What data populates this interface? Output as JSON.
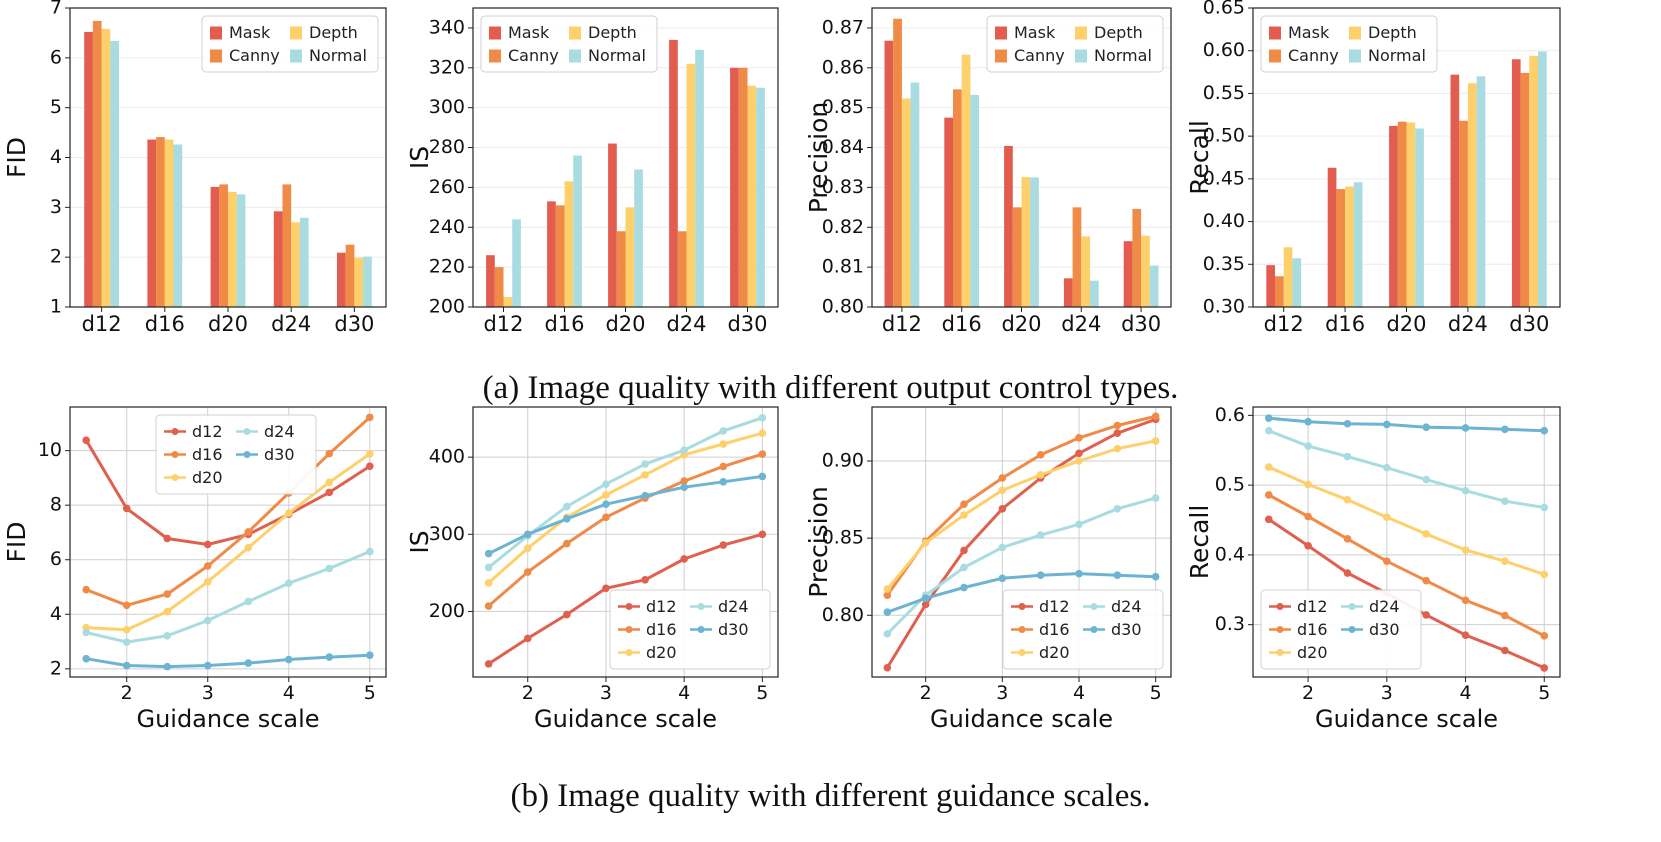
{
  "captions": {
    "a": "(a) Image quality with different output control types.",
    "b": "(b) Image quality with different guidance scales."
  },
  "chart_data": [
    {
      "type": "bar",
      "panel": "a",
      "ylabel": "FID",
      "xlabel": "",
      "categories": [
        "d12",
        "d16",
        "d20",
        "d24",
        "d30"
      ],
      "ylim": [
        1,
        7
      ],
      "yticks": [
        1,
        2,
        3,
        4,
        5,
        6,
        7
      ],
      "legend_position": "top-right",
      "legend_columns": 2,
      "series": [
        {
          "name": "Mask",
          "color": "#e35d4f",
          "values": [
            6.52,
            4.36,
            3.41,
            2.92,
            2.09
          ]
        },
        {
          "name": "Canny",
          "color": "#ef8a47",
          "values": [
            6.74,
            4.41,
            3.46,
            3.46,
            2.25
          ]
        },
        {
          "name": "Depth",
          "color": "#fdd06b",
          "values": [
            6.58,
            4.36,
            3.31,
            2.7,
            1.99
          ]
        },
        {
          "name": "Normal",
          "color": "#a8dce0",
          "values": [
            6.34,
            4.26,
            3.26,
            2.79,
            2.01
          ]
        }
      ]
    },
    {
      "type": "bar",
      "panel": "a",
      "ylabel": "IS",
      "xlabel": "",
      "categories": [
        "d12",
        "d16",
        "d20",
        "d24",
        "d30"
      ],
      "ylim": [
        200,
        350
      ],
      "yticks": [
        200,
        220,
        240,
        260,
        280,
        300,
        320,
        340
      ],
      "legend_position": "top-left",
      "legend_columns": 2,
      "series": [
        {
          "name": "Mask",
          "color": "#e35d4f",
          "values": [
            226,
            253,
            282,
            334,
            320
          ]
        },
        {
          "name": "Canny",
          "color": "#ef8a47",
          "values": [
            220,
            251,
            238,
            238,
            320
          ]
        },
        {
          "name": "Depth",
          "color": "#fdd06b",
          "values": [
            205,
            263,
            250,
            322,
            311
          ]
        },
        {
          "name": "Normal",
          "color": "#a8dce0",
          "values": [
            244,
            276,
            269,
            329,
            310
          ]
        }
      ]
    },
    {
      "type": "bar",
      "panel": "a",
      "ylabel": "Precision",
      "xlabel": "",
      "categories": [
        "d12",
        "d16",
        "d20",
        "d24",
        "d30"
      ],
      "ylim": [
        0.8,
        0.875
      ],
      "yticks": [
        0.8,
        0.81,
        0.82,
        0.83,
        0.84,
        0.85,
        0.86,
        0.87
      ],
      "tick_decimals": 2,
      "legend_position": "top-right",
      "legend_columns": 2,
      "series": [
        {
          "name": "Mask",
          "color": "#e35d4f",
          "values": [
            0.8668,
            0.8475,
            0.8404,
            0.8072,
            0.8165
          ]
        },
        {
          "name": "Canny",
          "color": "#ef8a47",
          "values": [
            0.8723,
            0.8546,
            0.825,
            0.825,
            0.8246
          ]
        },
        {
          "name": "Depth",
          "color": "#fdd06b",
          "values": [
            0.8523,
            0.8633,
            0.8326,
            0.8177,
            0.8179
          ]
        },
        {
          "name": "Normal",
          "color": "#a8dce0",
          "values": [
            0.8563,
            0.8532,
            0.8325,
            0.8066,
            0.8104
          ]
        }
      ]
    },
    {
      "type": "bar",
      "panel": "a",
      "ylabel": "Recall",
      "xlabel": "",
      "categories": [
        "d12",
        "d16",
        "d20",
        "d24",
        "d30"
      ],
      "ylim": [
        0.3,
        0.65
      ],
      "yticks": [
        0.3,
        0.35,
        0.4,
        0.45,
        0.5,
        0.55,
        0.6,
        0.65
      ],
      "tick_decimals": 2,
      "legend_position": "top-left",
      "legend_columns": 2,
      "series": [
        {
          "name": "Mask",
          "color": "#e35d4f",
          "values": [
            0.349,
            0.463,
            0.512,
            0.572,
            0.59
          ]
        },
        {
          "name": "Canny",
          "color": "#ef8a47",
          "values": [
            0.336,
            0.438,
            0.517,
            0.518,
            0.574
          ]
        },
        {
          "name": "Depth",
          "color": "#fdd06b",
          "values": [
            0.37,
            0.441,
            0.516,
            0.562,
            0.594
          ]
        },
        {
          "name": "Normal",
          "color": "#a8dce0",
          "values": [
            0.357,
            0.446,
            0.509,
            0.57,
            0.599
          ]
        }
      ]
    },
    {
      "type": "line",
      "panel": "b",
      "ylabel": "FID",
      "xlabel": "Guidance scale",
      "x": [
        1.5,
        2,
        2.5,
        3,
        3.5,
        4,
        4.5,
        5
      ],
      "xlim": [
        1.3,
        5.2
      ],
      "xticks": [
        2,
        3,
        4,
        5
      ],
      "ylim": [
        1.7,
        11.6
      ],
      "yticks": [
        2,
        4,
        6,
        8,
        10
      ],
      "grid": true,
      "legend_position": "top-center",
      "legend_columns": 2,
      "series": [
        {
          "name": "d12",
          "color": "#e0604f",
          "values": [
            10.38,
            7.88,
            6.78,
            6.56,
            6.93,
            7.67,
            8.47,
            9.43
          ]
        },
        {
          "name": "d16",
          "color": "#ef8a47",
          "values": [
            4.9,
            4.33,
            4.74,
            5.77,
            7.02,
            8.45,
            9.89,
            11.22
          ]
        },
        {
          "name": "d20",
          "color": "#fdd06b",
          "values": [
            3.51,
            3.43,
            4.1,
            5.19,
            6.44,
            7.71,
            8.84,
            9.88
          ]
        },
        {
          "name": "d24",
          "color": "#a8dce0",
          "values": [
            3.33,
            2.98,
            3.21,
            3.77,
            4.47,
            5.14,
            5.68,
            6.3
          ]
        },
        {
          "name": "d30",
          "color": "#6cb4d2",
          "values": [
            2.37,
            2.12,
            2.08,
            2.12,
            2.21,
            2.34,
            2.43,
            2.5
          ]
        }
      ]
    },
    {
      "type": "line",
      "panel": "b",
      "ylabel": "IS",
      "xlabel": "Guidance scale",
      "x": [
        1.5,
        2,
        2.5,
        3,
        3.5,
        4,
        4.5,
        5
      ],
      "xlim": [
        1.3,
        5.2
      ],
      "xticks": [
        2,
        3,
        4,
        5
      ],
      "ylim": [
        115,
        465
      ],
      "yticks": [
        200,
        300,
        400
      ],
      "grid": true,
      "legend_position": "bottom-right",
      "legend_columns": 2,
      "series": [
        {
          "name": "d12",
          "color": "#e0604f",
          "values": [
            132,
            165,
            196,
            230,
            241,
            268,
            286,
            300
          ]
        },
        {
          "name": "d16",
          "color": "#ef8a47",
          "values": [
            207,
            251,
            288,
            322,
            347,
            369,
            388,
            404
          ]
        },
        {
          "name": "d20",
          "color": "#fdd06b",
          "values": [
            237,
            282,
            322,
            351,
            377,
            403,
            417,
            431
          ]
        },
        {
          "name": "d24",
          "color": "#a8dce0",
          "values": [
            257,
            298,
            336,
            365,
            391,
            409,
            434,
            451
          ]
        },
        {
          "name": "d30",
          "color": "#6cb4d2",
          "values": [
            275,
            300,
            320,
            339,
            350,
            361,
            368,
            375
          ]
        }
      ]
    },
    {
      "type": "line",
      "panel": "b",
      "ylabel": "Precision",
      "xlabel": "Guidance scale",
      "x": [
        1.5,
        2,
        2.5,
        3,
        3.5,
        4,
        4.5,
        5
      ],
      "xlim": [
        1.3,
        5.2
      ],
      "xticks": [
        2,
        3,
        4,
        5
      ],
      "ylim": [
        0.76,
        0.935
      ],
      "yticks": [
        0.8,
        0.85,
        0.9
      ],
      "tick_decimals": 2,
      "grid": true,
      "legend_position": "bottom-right",
      "legend_columns": 2,
      "series": [
        {
          "name": "d12",
          "color": "#e0604f",
          "values": [
            0.766,
            0.807,
            0.842,
            0.869,
            0.889,
            0.905,
            0.918,
            0.927
          ]
        },
        {
          "name": "d16",
          "color": "#ef8a47",
          "values": [
            0.813,
            0.848,
            0.872,
            0.889,
            0.904,
            0.915,
            0.923,
            0.929
          ]
        },
        {
          "name": "d20",
          "color": "#fdd06b",
          "values": [
            0.817,
            0.847,
            0.865,
            0.881,
            0.891,
            0.9,
            0.908,
            0.913
          ]
        },
        {
          "name": "d24",
          "color": "#a8dce0",
          "values": [
            0.788,
            0.813,
            0.831,
            0.844,
            0.852,
            0.859,
            0.869,
            0.876
          ]
        },
        {
          "name": "d30",
          "color": "#6cb4d2",
          "values": [
            0.802,
            0.811,
            0.818,
            0.824,
            0.826,
            0.827,
            0.826,
            0.825
          ]
        }
      ]
    },
    {
      "type": "line",
      "panel": "b",
      "ylabel": "Recall",
      "xlabel": "Guidance scale",
      "x": [
        1.5,
        2,
        2.5,
        3,
        3.5,
        4,
        4.5,
        5
      ],
      "xlim": [
        1.3,
        5.2
      ],
      "xticks": [
        2,
        3,
        4,
        5
      ],
      "ylim": [
        0.225,
        0.612
      ],
      "yticks": [
        0.3,
        0.4,
        0.5,
        0.6
      ],
      "tick_decimals": 1,
      "grid": true,
      "legend_position": "bottom-left",
      "legend_columns": 2,
      "series": [
        {
          "name": "d12",
          "color": "#e0604f",
          "values": [
            0.451,
            0.413,
            0.374,
            0.345,
            0.314,
            0.285,
            0.263,
            0.238
          ]
        },
        {
          "name": "d16",
          "color": "#ef8a47",
          "values": [
            0.486,
            0.455,
            0.423,
            0.391,
            0.363,
            0.335,
            0.313,
            0.284
          ]
        },
        {
          "name": "d20",
          "color": "#fdd06b",
          "values": [
            0.526,
            0.501,
            0.479,
            0.454,
            0.43,
            0.407,
            0.391,
            0.372
          ]
        },
        {
          "name": "d24",
          "color": "#a8dce0",
          "values": [
            0.578,
            0.556,
            0.541,
            0.525,
            0.508,
            0.492,
            0.477,
            0.468
          ]
        },
        {
          "name": "d30",
          "color": "#6cb4d2",
          "values": [
            0.596,
            0.591,
            0.588,
            0.587,
            0.583,
            0.582,
            0.58,
            0.578
          ]
        }
      ]
    }
  ]
}
